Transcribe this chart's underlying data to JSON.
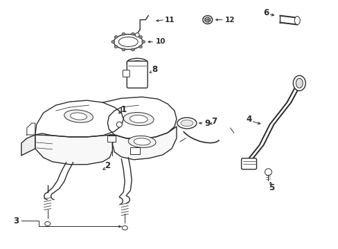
{
  "background_color": "#ffffff",
  "line_color": "#2a2a2a",
  "figsize": [
    4.89,
    3.6
  ],
  "dpi": 100,
  "label_fontsize": 8.5,
  "label_fontsize_small": 7.5
}
